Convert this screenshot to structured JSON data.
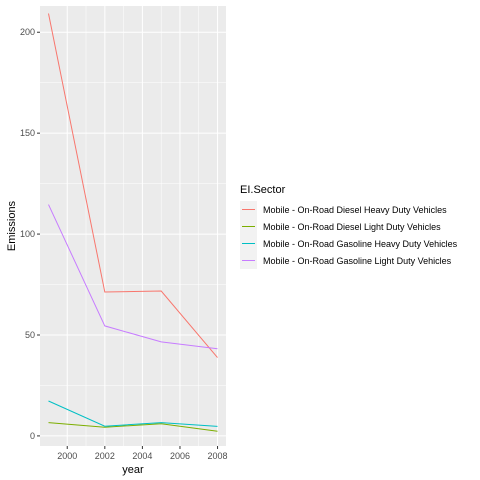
{
  "chart_data": {
    "type": "line",
    "xlabel": "year",
    "ylabel": "Emissions",
    "xlim": [
      1999,
      2008
    ],
    "ylim": [
      -5,
      213
    ],
    "x_ticks": [
      2000,
      2002,
      2004,
      2006,
      2008
    ],
    "y_ticks": [
      0,
      50,
      100,
      150,
      200
    ],
    "grid": true,
    "legend": {
      "title": "EI.Sector",
      "position": "right"
    },
    "x": [
      1999,
      2002,
      2005,
      2008
    ],
    "series": [
      {
        "name": "Mobile - On-Road Diesel Heavy Duty Vehicles",
        "color": "#F8766D",
        "values": [
          209.3,
          71.3,
          71.8,
          38.8
        ]
      },
      {
        "name": "Mobile - On-Road Diesel Light Duty Vehicles",
        "color": "#7CAE00",
        "values": [
          6.6,
          4.3,
          6.0,
          2.3
        ]
      },
      {
        "name": "Mobile - On-Road Gasoline Heavy Duty Vehicles",
        "color": "#00BFC4",
        "values": [
          17.3,
          4.8,
          6.6,
          4.7
        ]
      },
      {
        "name": "Mobile - On-Road Gasoline Light Duty Vehicles",
        "color": "#C77CFF",
        "values": [
          114.6,
          54.5,
          46.6,
          43.2
        ]
      }
    ]
  }
}
